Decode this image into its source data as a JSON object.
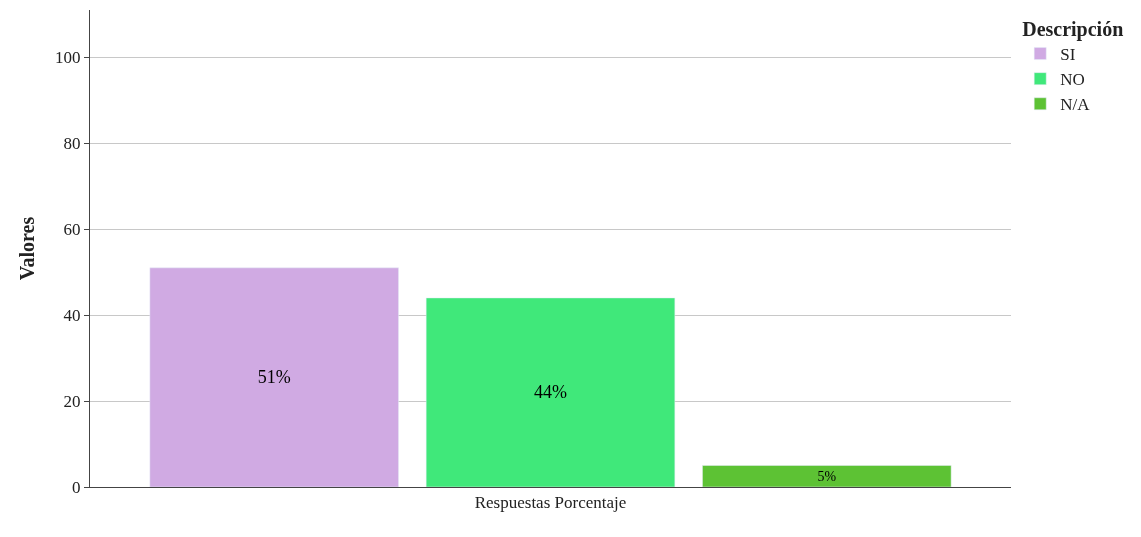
{
  "chart_data": {
    "type": "bar",
    "ylabel": "Valores",
    "legend_title": "Descripción",
    "categories": [
      "Respuestas Porcentaje"
    ],
    "series": [
      {
        "name": "SI",
        "color": "#d0aae3",
        "values": [
          51
        ],
        "value_labels": [
          "51%"
        ]
      },
      {
        "name": "NO",
        "color": "#40e87a",
        "values": [
          44
        ],
        "value_labels": [
          "44%"
        ]
      },
      {
        "name": "N/A",
        "color": "#5dc234",
        "values": [
          5
        ],
        "value_labels": [
          "5%"
        ]
      }
    ],
    "ylim": [
      0,
      111
    ],
    "yticks": [
      0,
      20,
      40,
      60,
      80,
      100
    ],
    "grid": "y",
    "legend": "top right"
  }
}
